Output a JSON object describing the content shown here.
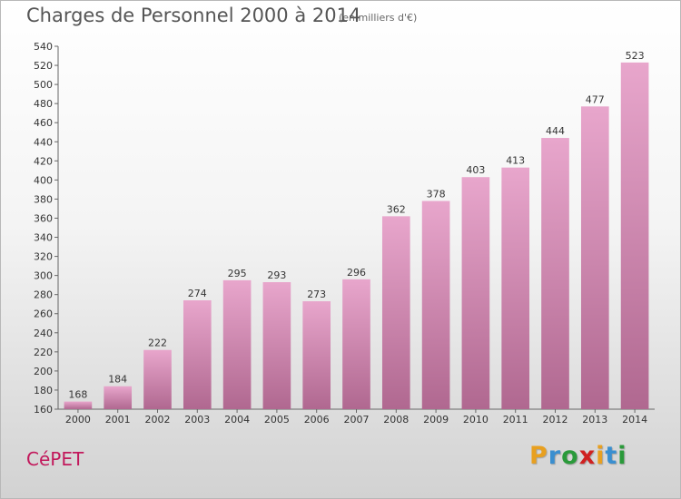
{
  "header": {
    "title": "Charges de Personnel 2000 à 2014",
    "subtitle": "(en milliers d'€)"
  },
  "footer": {
    "commune": "CéPET",
    "logo_letters": [
      "P",
      "r",
      "o",
      "x",
      "i",
      "t",
      "i"
    ],
    "logo_colors": [
      "#e8a020",
      "#3a8fd0",
      "#2a9a3a",
      "#d02020",
      "#e8a020",
      "#3a8fd0",
      "#2a9a3a"
    ]
  },
  "colors": {
    "bar_top": "#e8a6cc",
    "bar_bottom": "#b06890",
    "commune": "#c2185b",
    "text": "#333333"
  },
  "chart_data": {
    "type": "bar",
    "title": "Charges de Personnel 2000 à 2014",
    "subtitle": "(en milliers d'€)",
    "categories": [
      "2000",
      "2001",
      "2002",
      "2003",
      "2004",
      "2005",
      "2006",
      "2007",
      "2008",
      "2009",
      "2010",
      "2011",
      "2012",
      "2013",
      "2014"
    ],
    "values": [
      168,
      184,
      222,
      274,
      295,
      293,
      273,
      296,
      362,
      378,
      403,
      413,
      444,
      477,
      523
    ],
    "ylim": [
      160,
      540
    ],
    "yticks": [
      160,
      180,
      200,
      220,
      240,
      260,
      280,
      300,
      320,
      340,
      360,
      380,
      400,
      420,
      440,
      460,
      480,
      500,
      520,
      540
    ],
    "grid": false,
    "legend": "none"
  }
}
